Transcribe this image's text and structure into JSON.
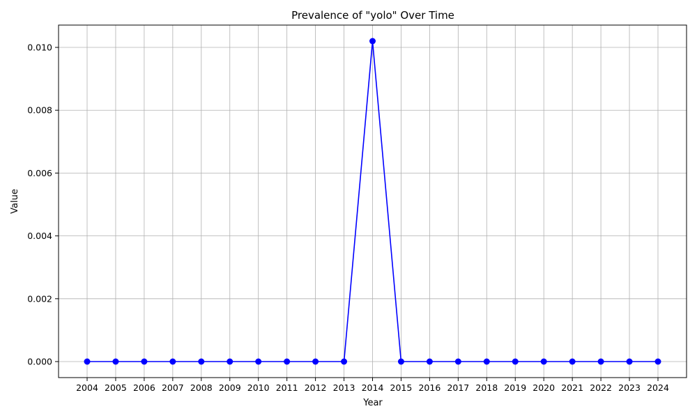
{
  "chart_data": {
    "type": "line",
    "title": "Prevalence of \"yolo\" Over Time",
    "xlabel": "Year",
    "ylabel": "Value",
    "categories": [
      "2004",
      "2005",
      "2006",
      "2007",
      "2008",
      "2009",
      "2010",
      "2011",
      "2012",
      "2013",
      "2014",
      "2015",
      "2016",
      "2017",
      "2018",
      "2019",
      "2020",
      "2021",
      "2022",
      "2023",
      "2024"
    ],
    "series": [
      {
        "color": "#0000ff",
        "marker": "circle",
        "values": [
          0,
          0,
          0,
          0,
          0,
          0,
          0,
          0,
          0,
          0,
          0.0102,
          0,
          0,
          0,
          0,
          0,
          0,
          0,
          0,
          0,
          0
        ]
      }
    ],
    "yticks": [
      "0.000",
      "0.002",
      "0.004",
      "0.006",
      "0.008",
      "0.010"
    ],
    "ylim": [
      -0.00051,
      0.01071
    ],
    "grid": true
  }
}
